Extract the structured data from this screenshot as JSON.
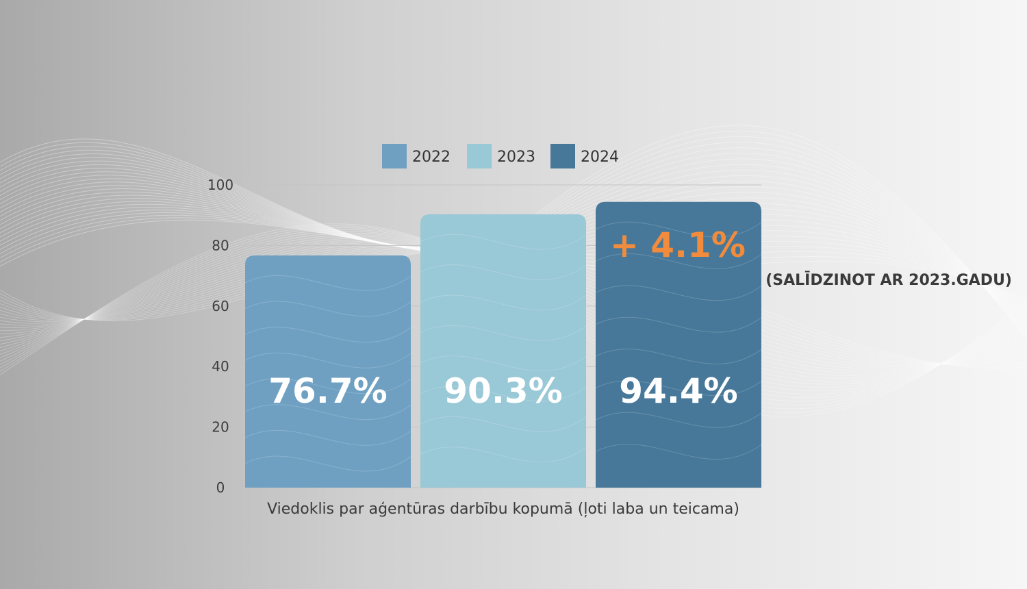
{
  "chart_data": {
    "type": "bar",
    "categories": [
      "Viedoklis par aģentūras darbību kopumā (ļoti laba un teicama)"
    ],
    "xlabel": "Viedoklis par aģentūras darbību kopumā (ļoti laba un teicama)",
    "ylabel": "",
    "ylim": [
      0,
      100
    ],
    "yticks": [
      0,
      20,
      40,
      60,
      80,
      100
    ],
    "grid": true,
    "legend_position": "top",
    "series": [
      {
        "name": "2022",
        "values": [
          76.7
        ],
        "label": "76.7%",
        "color": "#6fa0c2"
      },
      {
        "name": "2023",
        "values": [
          90.3
        ],
        "label": "90.3%",
        "color": "#99c8d6"
      },
      {
        "name": "2024",
        "values": [
          94.4
        ],
        "label": "94.4%",
        "color": "#477899"
      }
    ],
    "annotation": {
      "text": "+ 4.1%",
      "color": "#f28c3c"
    },
    "note": "(SALĪDZINOT AR 2023.GADU)"
  }
}
